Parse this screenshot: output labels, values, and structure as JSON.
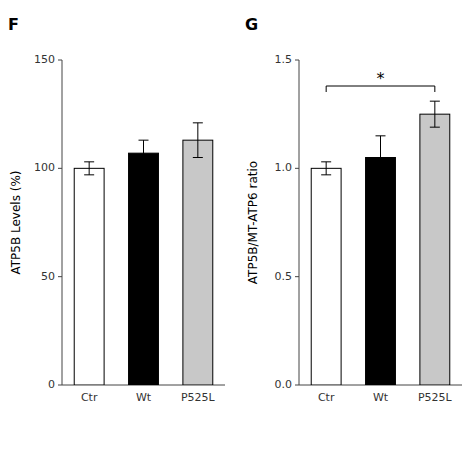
{
  "chart_data": [
    {
      "type": "bar",
      "title": "F",
      "y_label": "ATP5B Levels (%)",
      "categories": [
        "Ctr",
        "Wt",
        "P525L"
      ],
      "values": [
        100,
        107,
        113
      ],
      "errors": [
        3,
        6,
        8
      ],
      "colors": [
        "white",
        "black",
        "#c8c8c8"
      ],
      "ylim": [
        0,
        150
      ],
      "yticks": [
        0,
        50,
        100,
        150
      ]
    },
    {
      "type": "bar",
      "title": "G",
      "y_label": "ATP5B/MT-ATP6 ratio",
      "categories": [
        "Ctr",
        "Wt",
        "P525L"
      ],
      "values": [
        1.0,
        1.05,
        1.25
      ],
      "errors": [
        0.03,
        0.1,
        0.06
      ],
      "colors": [
        "white",
        "black",
        "#c8c8c8"
      ],
      "ylim": [
        0.0,
        1.5
      ],
      "yticks": [
        {
          "value": 0.0,
          "label": "0.0"
        },
        0.5,
        {
          "value": 1.0,
          "label": "1.0"
        },
        {
          "value": 1.5,
          "label": "1.5"
        }
      ],
      "annotations": [
        {
          "text": "*",
          "between": [
            "Ctr",
            "P525L"
          ],
          "y": 1.38
        }
      ]
    }
  ]
}
